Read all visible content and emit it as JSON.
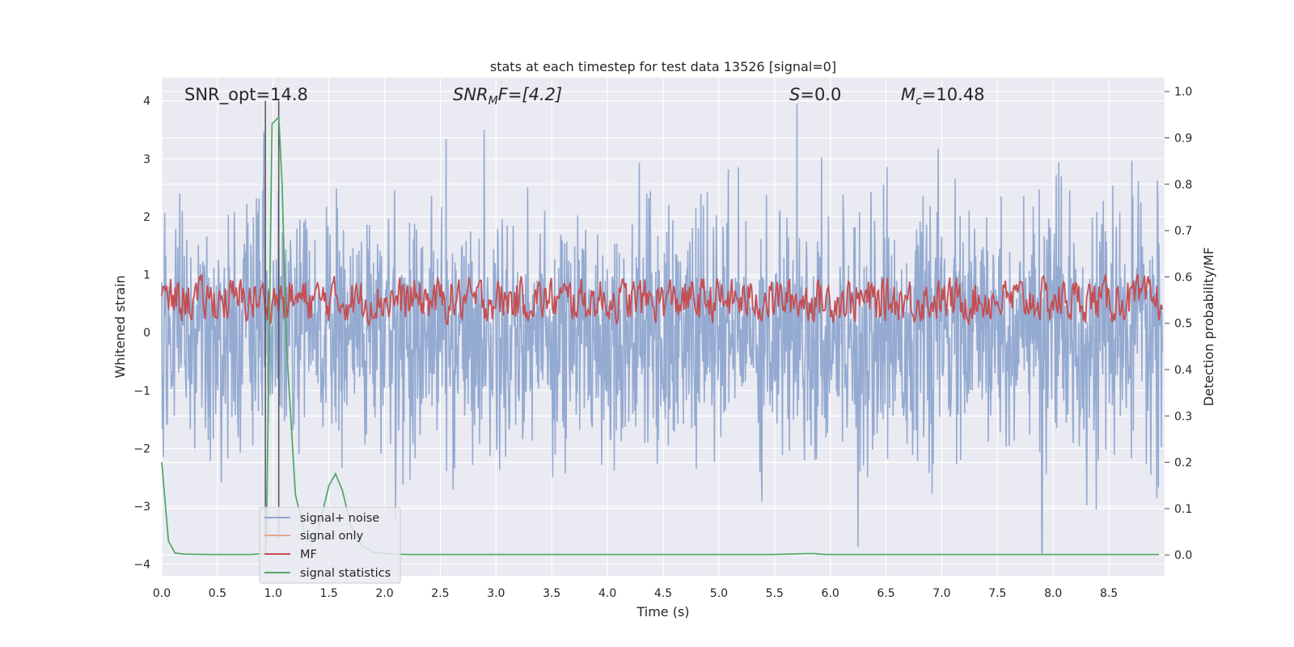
{
  "chart_data": {
    "type": "line",
    "title": "stats at each timestep for test data 13526 [signal=0]",
    "xlabel": "Time (s)",
    "ylabel_left": "Whitened strain",
    "ylabel_right": "Detection probability/MF",
    "xlim": [
      0.0,
      9.0
    ],
    "ylim_left": [
      -4.2,
      4.4
    ],
    "ylim_right": [
      -0.045,
      1.03
    ],
    "x_ticks": [
      "0.0",
      "0.5",
      "1.0",
      "1.5",
      "2.0",
      "2.5",
      "3.0",
      "3.5",
      "4.0",
      "4.5",
      "5.0",
      "5.5",
      "6.0",
      "6.5",
      "7.0",
      "7.5",
      "8.0",
      "8.5"
    ],
    "y_ticks_left": [
      "4",
      "3",
      "2",
      "1",
      "0",
      "−1",
      "−2",
      "−3",
      "−4"
    ],
    "y_ticks_right": [
      "1.0",
      "0.9",
      "0.8",
      "0.7",
      "0.6",
      "0.5",
      "0.4",
      "0.3",
      "0.2",
      "0.1",
      "0.0"
    ],
    "grid": true,
    "legend_position": "lower-left",
    "annotations": {
      "snr_opt": "SNR_opt=14.8",
      "snr_mf_main": "SNR",
      "snr_mf_sub": "M",
      "snr_mf_rest": "F=[4.2]",
      "s_main": "S",
      "s_rest": "=0.0",
      "mc_main": "M",
      "mc_sub": "c",
      "mc_rest": "=10.48"
    },
    "vertical_markers_s": [
      0.93,
      1.05
    ],
    "series": [
      {
        "name": "signal+ noise",
        "color": "#8fa6cf",
        "description": "whitened strain noise, roughly symmetric about 0 with std ~1, peaks near +4 at 5.7s and -3.8 at 7.9s",
        "approx_range": [
          -3.8,
          4.0
        ]
      },
      {
        "name": "signal only",
        "color": "#e8a58f",
        "values": []
      },
      {
        "name": "MF",
        "color": "#c44e52",
        "description": "matched filter output on right axis, fluctuating between ~0.5 and ~0.6",
        "approx_range": [
          0.5,
          0.6
        ]
      },
      {
        "name": "signal statistics",
        "color": "#55a868",
        "axis": "right",
        "x": [
          0.0,
          0.06,
          0.12,
          0.2,
          0.4,
          0.6,
          0.8,
          0.93,
          0.94,
          0.99,
          1.05,
          1.08,
          1.12,
          1.2,
          1.3,
          1.4,
          1.5,
          1.56,
          1.62,
          1.7,
          1.8,
          1.9,
          2.0,
          2.2,
          3.0,
          4.0,
          5.0,
          5.5,
          5.8,
          5.85,
          5.95,
          6.1,
          7.0,
          8.0,
          8.95
        ],
        "values": [
          0.2,
          0.03,
          0.004,
          0.002,
          0.001,
          0.001,
          0.001,
          0.003,
          0.05,
          0.93,
          0.945,
          0.8,
          0.45,
          0.13,
          0.03,
          0.05,
          0.15,
          0.175,
          0.14,
          0.06,
          0.02,
          0.006,
          0.003,
          0.001,
          0.001,
          0.001,
          0.001,
          0.001,
          0.003,
          0.003,
          0.001,
          0.001,
          0.001,
          0.001,
          0.001
        ]
      }
    ]
  }
}
